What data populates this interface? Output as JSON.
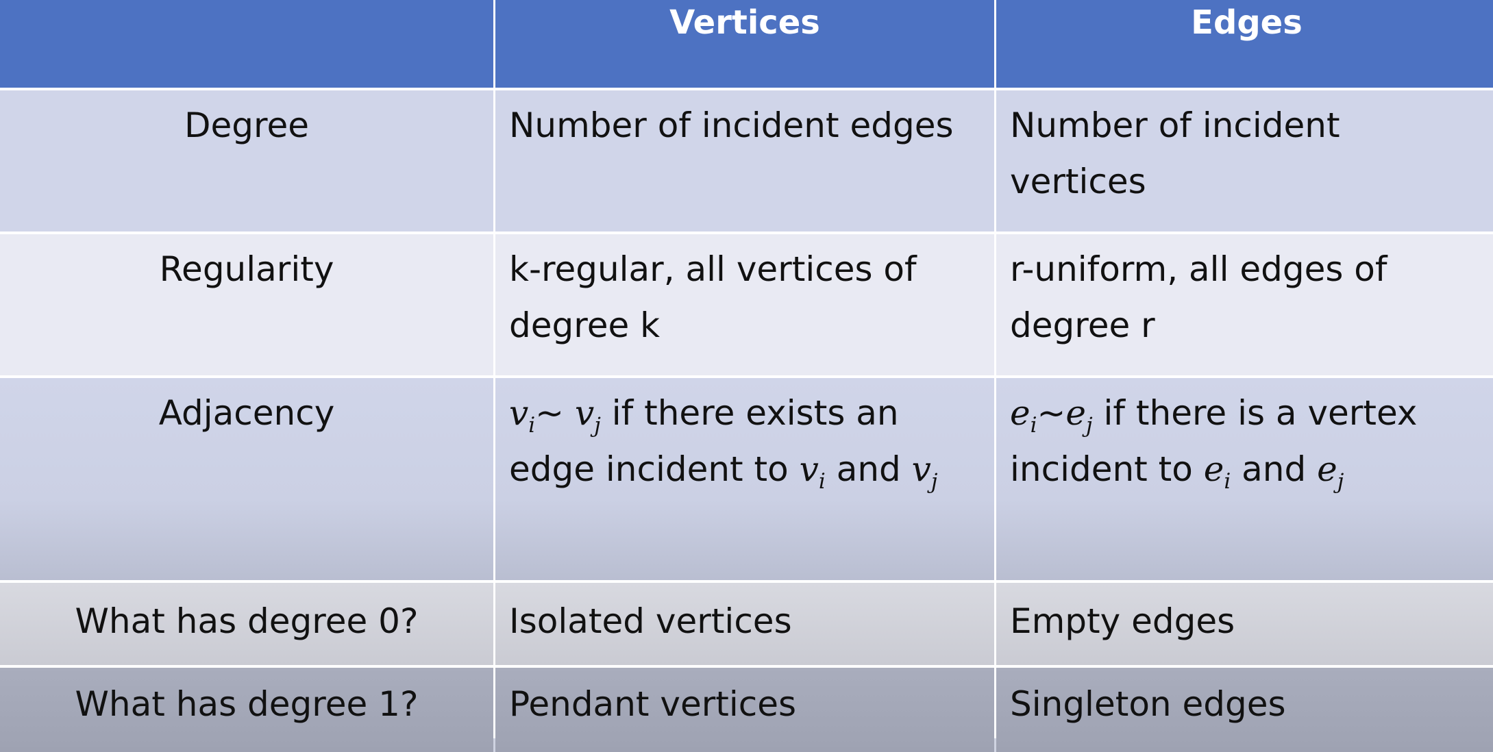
{
  "header": {
    "col0": "",
    "col1": "Vertices",
    "col2": "Edges"
  },
  "rows": [
    {
      "label": "Degree",
      "vertices": "Number of incident edges",
      "edges_line1": "Number of incident",
      "edges_line2": "vertices"
    },
    {
      "label": "Regularity",
      "vertices_line1": "k-regular, all vertices of",
      "vertices_line2": "degree k",
      "edges_line1": "r-uniform, all edges of",
      "edges_line2": "degree r"
    },
    {
      "label": "Adjacency",
      "vertices": {
        "v": "v",
        "i": "i",
        "tilde": "~",
        "j": "j",
        "line1_rest": " if there exists an",
        "line2_prefix": "edge incident to ",
        "and": " and "
      },
      "edges": {
        "e": "e",
        "i": "i",
        "tilde": "~",
        "j": "j",
        "line1_rest": " if there is a vertex",
        "line2_prefix": "incident to ",
        "and": " and "
      }
    },
    {
      "label": "What has degree 0?",
      "vertices": "Isolated vertices",
      "edges": "Empty edges"
    },
    {
      "label": "What has degree 1?",
      "vertices": "Pendant vertices",
      "edges": "Singleton edges"
    }
  ],
  "colors": {
    "header": "#4d72c2",
    "row_light": "#e9eaf3",
    "row_mid": "#d0d5e9",
    "row_dark": "#a9adbd"
  }
}
